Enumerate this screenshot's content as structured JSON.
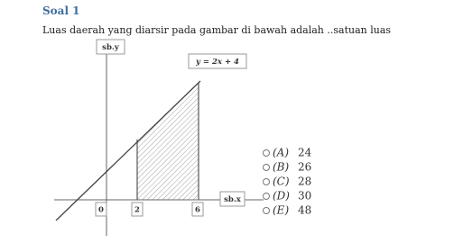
{
  "header": {
    "title": "Soal 1"
  },
  "question": "Luas daerah yang diarsir pada gambar di bawah adalah ..satuan luas",
  "graph": {
    "y_axis_label": "sb.y",
    "x_axis_label": "sb.x",
    "line_label": "y = 2x + 4",
    "x_labels": [
      "0",
      "2",
      "6"
    ]
  },
  "options": [
    {
      "letter": "(A)",
      "value": 24
    },
    {
      "letter": "(B)",
      "value": 26
    },
    {
      "letter": "(C)",
      "value": 28
    },
    {
      "letter": "(D)",
      "value": 30
    },
    {
      "letter": "(E)",
      "value": 48
    }
  ]
}
